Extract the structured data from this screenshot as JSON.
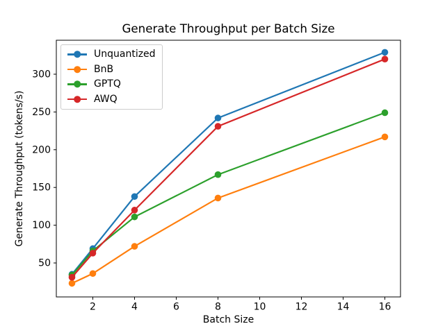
{
  "chart_data": {
    "type": "line",
    "title": "Generate Throughput per Batch Size",
    "xlabel": "Batch Size",
    "ylabel": "Generate Throughput (tokens/s)",
    "x": [
      1,
      2,
      4,
      8,
      16
    ],
    "series": [
      {
        "name": "Unquantized",
        "color": "#1f77b4",
        "values": [
          35,
          69,
          138,
          242,
          329
        ]
      },
      {
        "name": "BnB",
        "color": "#ff7f0e",
        "values": [
          23,
          36,
          72,
          136,
          217
        ]
      },
      {
        "name": "GPTQ",
        "color": "#2ca02c",
        "values": [
          34,
          66,
          111,
          167,
          249
        ]
      },
      {
        "name": "AWQ",
        "color": "#d62728",
        "values": [
          31,
          63,
          120,
          231,
          320
        ]
      }
    ],
    "x_ticks": [
      2,
      4,
      6,
      8,
      10,
      12,
      14,
      16
    ],
    "y_ticks": [
      50,
      100,
      150,
      200,
      250,
      300
    ],
    "xlim": [
      0.25,
      16.75
    ],
    "ylim": [
      5,
      345
    ],
    "grid": false,
    "legend_position": "upper left",
    "marker": "o",
    "line_color": "#000000",
    "background_color": "#ffffff"
  }
}
